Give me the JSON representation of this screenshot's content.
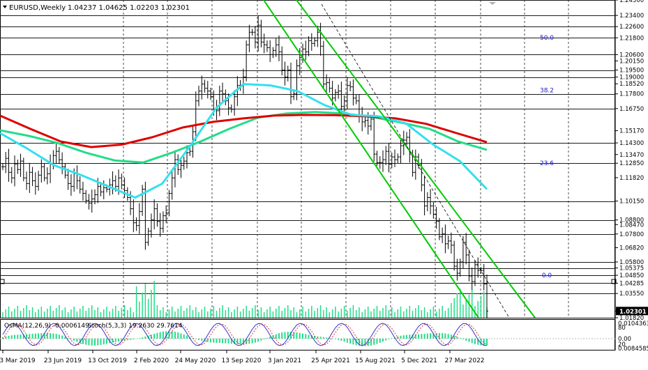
{
  "header": {
    "symbol": "EURUSD,Weekly",
    "ohlc": "1.04237 1.04625 1.02203 1.02301"
  },
  "indicator_header": {
    "osma": "OsMA(12,26,9) -0.0006149",
    "stoch": "Stoch(5,3,3) 19.2630 29.7614"
  },
  "colors": {
    "price_bars": "#000000",
    "ema_red": "#dd0000",
    "ema_green": "#22dd88",
    "ema_cyan": "#33e0ee",
    "channel": "#00cc00",
    "hline": "#1a1a1a",
    "fibo_label": "#1a1acc",
    "osma": "#22dd88",
    "stoch_main": "#3333cc",
    "stoch_signal": "#dd3333"
  },
  "chart_data": {
    "type": "line",
    "title": "EURUSD,Weekly",
    "ylim": [
      1.0182,
      1.245
    ],
    "price_axis_ticks": [
      "1.24500",
      "1.23400",
      "1.22600",
      "1.21800",
      "1.20600",
      "1.20150",
      "1.19500",
      "1.19000",
      "1.18520",
      "1.17800",
      "1.16750",
      "1.15170",
      "1.14300",
      "1.13470",
      "1.12850",
      "1.11820",
      "1.10150",
      "1.08800",
      "1.08470",
      "1.07800",
      "1.06820",
      "1.05800",
      "1.05375",
      "1.04850",
      "1.04285",
      "1.03550",
      "1.02301",
      "1.01820"
    ],
    "horizontal_levels": [
      1.245,
      1.234,
      1.226,
      1.218,
      1.206,
      1.195,
      1.19,
      1.178,
      1.1675,
      1.143,
      1.1285,
      1.1015,
      1.088,
      1.078,
      1.058,
      1.05375,
      1.0485,
      1.04285,
      1.0355
    ],
    "current_price": "1.02301",
    "fibo_labels": [
      {
        "label": "50.0",
        "price": 1.2182
      },
      {
        "label": "38.2",
        "price": 1.1805
      },
      {
        "label": "23.6",
        "price": 1.1285
      },
      {
        "label": "0.0",
        "price": 1.0485
      }
    ],
    "x_labels": [
      "3 Mar 2019",
      "23 Jun 2019",
      "13 Oct 2019",
      "2 Feb 2020",
      "24 May 2020",
      "13 Sep 2020",
      "3 Jan 2021",
      "25 Apr 2021",
      "15 Aug 2021",
      "5 Dec 2021",
      "27 Mar 2022"
    ],
    "close_series": [
      1.126,
      1.132,
      1.122,
      1.118,
      1.128,
      1.124,
      1.13,
      1.118,
      1.114,
      1.122,
      1.116,
      1.112,
      1.12,
      1.126,
      1.118,
      1.121,
      1.128,
      1.134,
      1.137,
      1.131,
      1.126,
      1.12,
      1.114,
      1.112,
      1.121,
      1.116,
      1.11,
      1.107,
      1.102,
      1.1,
      1.103,
      1.106,
      1.112,
      1.108,
      1.111,
      1.11,
      1.113,
      1.116,
      1.112,
      1.118,
      1.113,
      1.109,
      1.104,
      1.096,
      1.086,
      1.084,
      1.094,
      1.11,
      1.072,
      1.08,
      1.088,
      1.096,
      1.087,
      1.082,
      1.091,
      1.093,
      1.107,
      1.118,
      1.131,
      1.124,
      1.127,
      1.13,
      1.136,
      1.137,
      1.151,
      1.173,
      1.18,
      1.185,
      1.182,
      1.18,
      1.176,
      1.167,
      1.166,
      1.18,
      1.178,
      1.173,
      1.168,
      1.167,
      1.176,
      1.184,
      1.184,
      1.19,
      1.213,
      1.222,
      1.222,
      1.215,
      1.227,
      1.215,
      1.213,
      1.211,
      1.206,
      1.209,
      1.213,
      1.208,
      1.195,
      1.19,
      1.195,
      1.176,
      1.178,
      1.198,
      1.204,
      1.21,
      1.208,
      1.216,
      1.214,
      1.216,
      1.222,
      1.212,
      1.185,
      1.186,
      1.182,
      1.175,
      1.179,
      1.18,
      1.169,
      1.173,
      1.184,
      1.183,
      1.175,
      1.173,
      1.162,
      1.158,
      1.159,
      1.155,
      1.16,
      1.135,
      1.129,
      1.129,
      1.131,
      1.137,
      1.128,
      1.133,
      1.131,
      1.133,
      1.141,
      1.145,
      1.147,
      1.135,
      1.122,
      1.133,
      1.127,
      1.113,
      1.098,
      1.104,
      1.098,
      1.092,
      1.087,
      1.076,
      1.078,
      1.071,
      1.073,
      1.07,
      1.055,
      1.05,
      1.058,
      1.072,
      1.063,
      1.048,
      1.044,
      1.056,
      1.052,
      1.052,
      1.0423,
      1.02301
    ],
    "ema_red": [
      1.1625,
      1.153,
      1.144,
      1.14,
      1.1418,
      1.147,
      1.154,
      1.158,
      1.1605,
      1.1625,
      1.163,
      1.1628,
      1.162,
      1.1605,
      1.1566,
      1.15,
      1.1435
    ],
    "ema_green": [
      1.152,
      1.148,
      1.143,
      1.136,
      1.1305,
      1.129,
      1.136,
      1.144,
      1.153,
      1.161,
      1.164,
      1.165,
      1.164,
      1.1615,
      1.1575,
      1.153,
      1.144,
      1.138
    ],
    "ema_cyan": [
      1.15,
      1.139,
      1.127,
      1.12,
      1.112,
      1.104,
      1.114,
      1.14,
      1.168,
      1.185,
      1.184,
      1.18,
      1.17,
      1.163,
      1.162,
      1.157,
      1.142,
      1.13,
      1.11
    ],
    "channel_lines": [
      {
        "name": "upper",
        "p1": [
          1.248
        ],
        "p2": [
          1.0182
        ]
      },
      {
        "name": "lower",
        "p1": [
          1.248
        ],
        "p2": [
          1.0182
        ]
      },
      {
        "name": "mid",
        "p1": [
          1.248
        ],
        "p2": [
          1.0182
        ]
      }
    ],
    "osma_axis_ticks": [
      "0.0104363",
      "0.00",
      "0.0084585"
    ],
    "stoch_axis_ticks": [
      "80",
      "20"
    ]
  }
}
